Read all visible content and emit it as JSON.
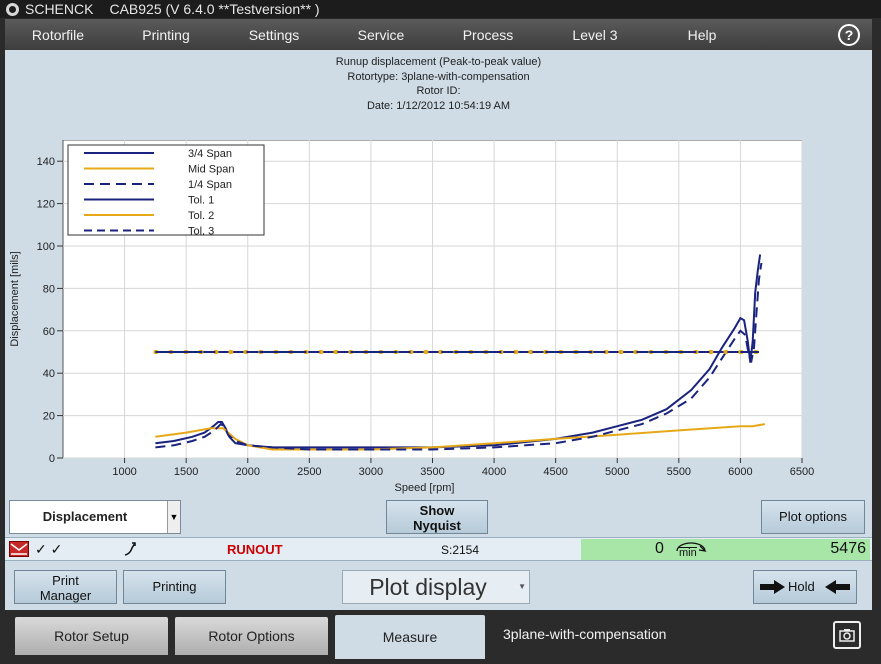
{
  "titlebar": {
    "brand": "SCHENCK",
    "app": "CAB925 (V 6.4.0 **Testversion** )"
  },
  "menu": {
    "items": [
      "Rotorfile",
      "Printing",
      "Settings",
      "Service",
      "Process",
      "Level 3",
      "Help"
    ],
    "help_icon": "?"
  },
  "plot_header": {
    "line1": "Runup displacement (Peak-to-peak value)",
    "line2": "Rotortype: 3plane-with-compensation",
    "line3": "Rotor ID:",
    "line4": "Date: 1/12/2012 10:54:19 AM"
  },
  "chart_data": {
    "type": "line",
    "xlabel": "Speed [rpm]",
    "ylabel": "Displacement [mils]",
    "xlim": [
      500,
      6500
    ],
    "ylim": [
      0,
      150
    ],
    "xticks": [
      1000,
      1500,
      2000,
      2500,
      3000,
      3500,
      4000,
      4500,
      5000,
      5500,
      6000,
      6500
    ],
    "yticks": [
      0,
      20,
      40,
      60,
      80,
      100,
      120,
      140
    ],
    "grid": true,
    "legend_position": "top-left",
    "series": [
      {
        "name": "3/4 Span",
        "color": "#1a237e",
        "dash": "solid",
        "x": [
          1250,
          1400,
          1550,
          1650,
          1720,
          1760,
          1790,
          1820,
          1850,
          1900,
          2000,
          2200,
          2500,
          3000,
          3500,
          4000,
          4500,
          4800,
          5000,
          5200,
          5400,
          5600,
          5750,
          5850,
          5950,
          6000,
          6030,
          6060,
          6080,
          6100,
          6120,
          6140,
          6160
        ],
        "y": [
          7,
          8,
          10,
          12,
          15,
          17,
          17,
          14,
          10,
          7,
          6,
          5,
          5,
          5,
          5,
          6,
          9,
          12,
          15,
          18,
          23,
          32,
          42,
          52,
          61,
          66,
          65,
          55,
          45,
          55,
          78,
          88,
          96
        ]
      },
      {
        "name": "Mid Span",
        "color": "#e6a817",
        "dash": "solid",
        "x": [
          1250,
          1500,
          1700,
          1800,
          1900,
          2000,
          2200,
          2500,
          3000,
          3500,
          4000,
          4500,
          5000,
          5500,
          6000,
          6100,
          6200
        ],
        "y": [
          10,
          12,
          14,
          14,
          9,
          6,
          4,
          4,
          4,
          5,
          7,
          9,
          11,
          13,
          15,
          15,
          16
        ]
      },
      {
        "name": "1/4 Span",
        "color": "#1a237e",
        "dash": "long",
        "x": [
          1250,
          1400,
          1550,
          1650,
          1730,
          1780,
          1810,
          1840,
          1900,
          2000,
          2200,
          2500,
          3000,
          3500,
          4000,
          4500,
          4800,
          5000,
          5200,
          5400,
          5600,
          5750,
          5850,
          5950,
          6000,
          6040,
          6070,
          6090,
          6110,
          6130,
          6150,
          6170
        ],
        "y": [
          5,
          6,
          8,
          10,
          13,
          16,
          15,
          11,
          8,
          6,
          5,
          4,
          4,
          4,
          5,
          7,
          10,
          13,
          16,
          21,
          28,
          38,
          47,
          56,
          60,
          58,
          48,
          46,
          52,
          68,
          84,
          92
        ]
      },
      {
        "name": "Tol. 1",
        "color": "#1a237e",
        "dash": "solid",
        "x": [
          1250,
          6150
        ],
        "y": [
          50,
          50
        ]
      },
      {
        "name": "Tol. 2",
        "color": "#e6a817",
        "dash": "dotted",
        "x": [
          1250,
          6150
        ],
        "y": [
          50,
          50
        ]
      },
      {
        "name": "Tol. 3",
        "color": "#1a237e",
        "dash": "dashed",
        "x": [
          1250,
          6150
        ],
        "y": [
          50,
          50
        ]
      }
    ]
  },
  "controls": {
    "displacement_select": "Displacement",
    "show_nyquist_line1": "Show",
    "show_nyquist_line2": "Nyquist",
    "plot_options": "Plot options"
  },
  "status": {
    "checks": "✓  ✓",
    "runout": "RUNOUT",
    "s_value": "S:2154",
    "speed_value": "0",
    "rpm_unit": "min",
    "counter": "5476",
    "runout_color": "#cc0000",
    "speed_panel_color": "#a8e6a8"
  },
  "bottom_buttons": {
    "print_manager_line1": "Print",
    "print_manager_line2": "Manager",
    "printing": "Printing",
    "plot_display": "Plot display",
    "hold": "Hold"
  },
  "tabs": {
    "rotor_setup": "Rotor Setup",
    "rotor_options": "Rotor Options",
    "measure": "Measure",
    "rotor_type": "3plane-with-compensation"
  },
  "icons": {
    "logo": "schenck-logo-icon",
    "help": "help-icon",
    "camera": "camera-icon",
    "alarm": "alarm-icon"
  }
}
